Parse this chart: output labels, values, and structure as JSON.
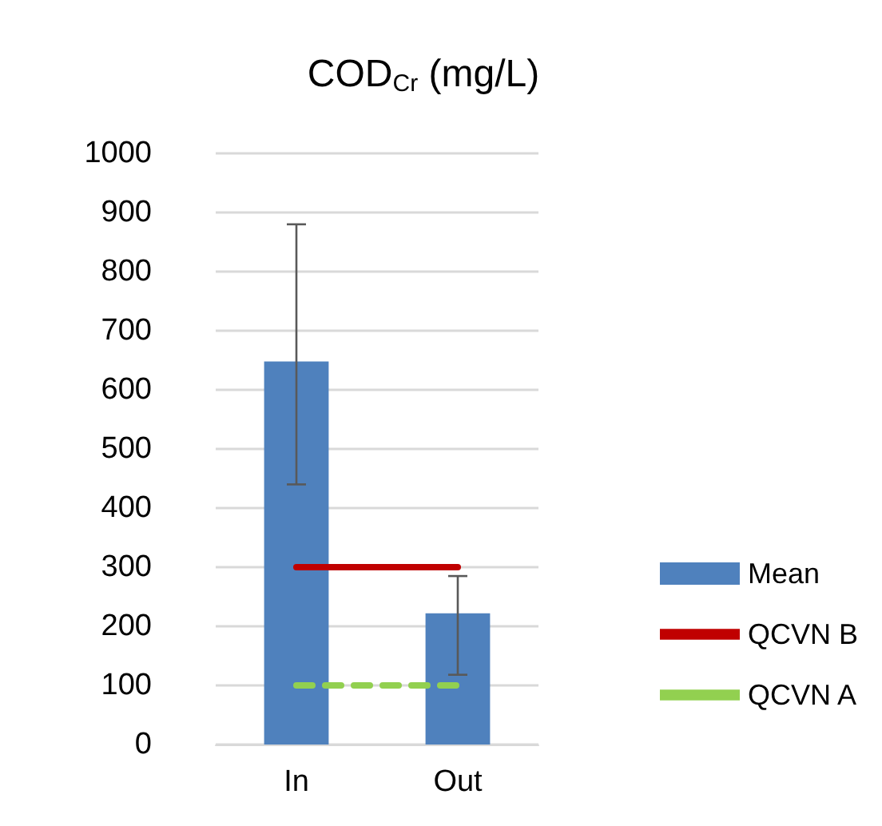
{
  "chart_data": {
    "type": "bar",
    "title": "COD$_{Cr}$ (mg/L)",
    "categories": [
      "In",
      "Out"
    ],
    "series": [
      {
        "name": "Mean",
        "color": "#4f81bd",
        "values": [
          648,
          222
        ],
        "errors": [
          [
            440,
            880
          ],
          [
            118,
            285
          ]
        ]
      },
      {
        "name": "QCVN B",
        "type": "line",
        "color": "#c00000",
        "values": [
          300,
          300
        ],
        "line_style": "solid"
      },
      {
        "name": "QCVN A",
        "type": "line",
        "color": "#92d050",
        "values": [
          100,
          100
        ],
        "line_style": "dashed"
      }
    ],
    "ylim": [
      0,
      1000
    ],
    "yticks": [
      0,
      100,
      200,
      300,
      400,
      500,
      600,
      700,
      800,
      900,
      1000
    ],
    "grid": "y",
    "legend": "right",
    "marker": "none"
  }
}
